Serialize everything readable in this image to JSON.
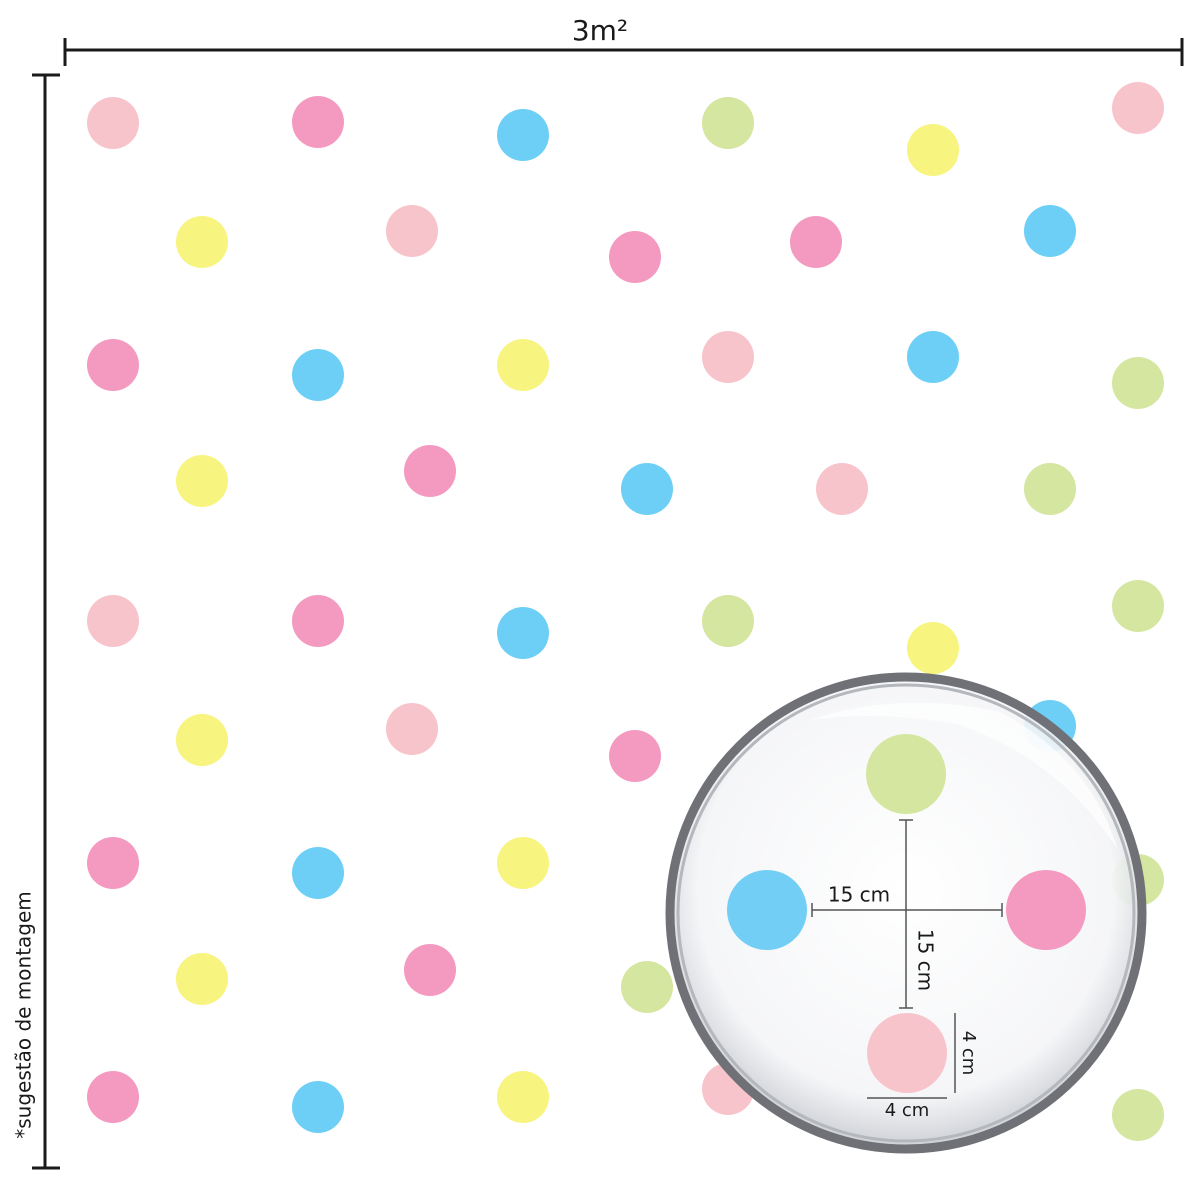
{
  "header": {
    "title": "3m²"
  },
  "side_note": "*sugestão de montagem",
  "detail": {
    "horizontal_spacing": "15 cm",
    "vertical_spacing": "15 cm",
    "dot_height": "4 cm",
    "dot_width": "4 cm"
  }
}
